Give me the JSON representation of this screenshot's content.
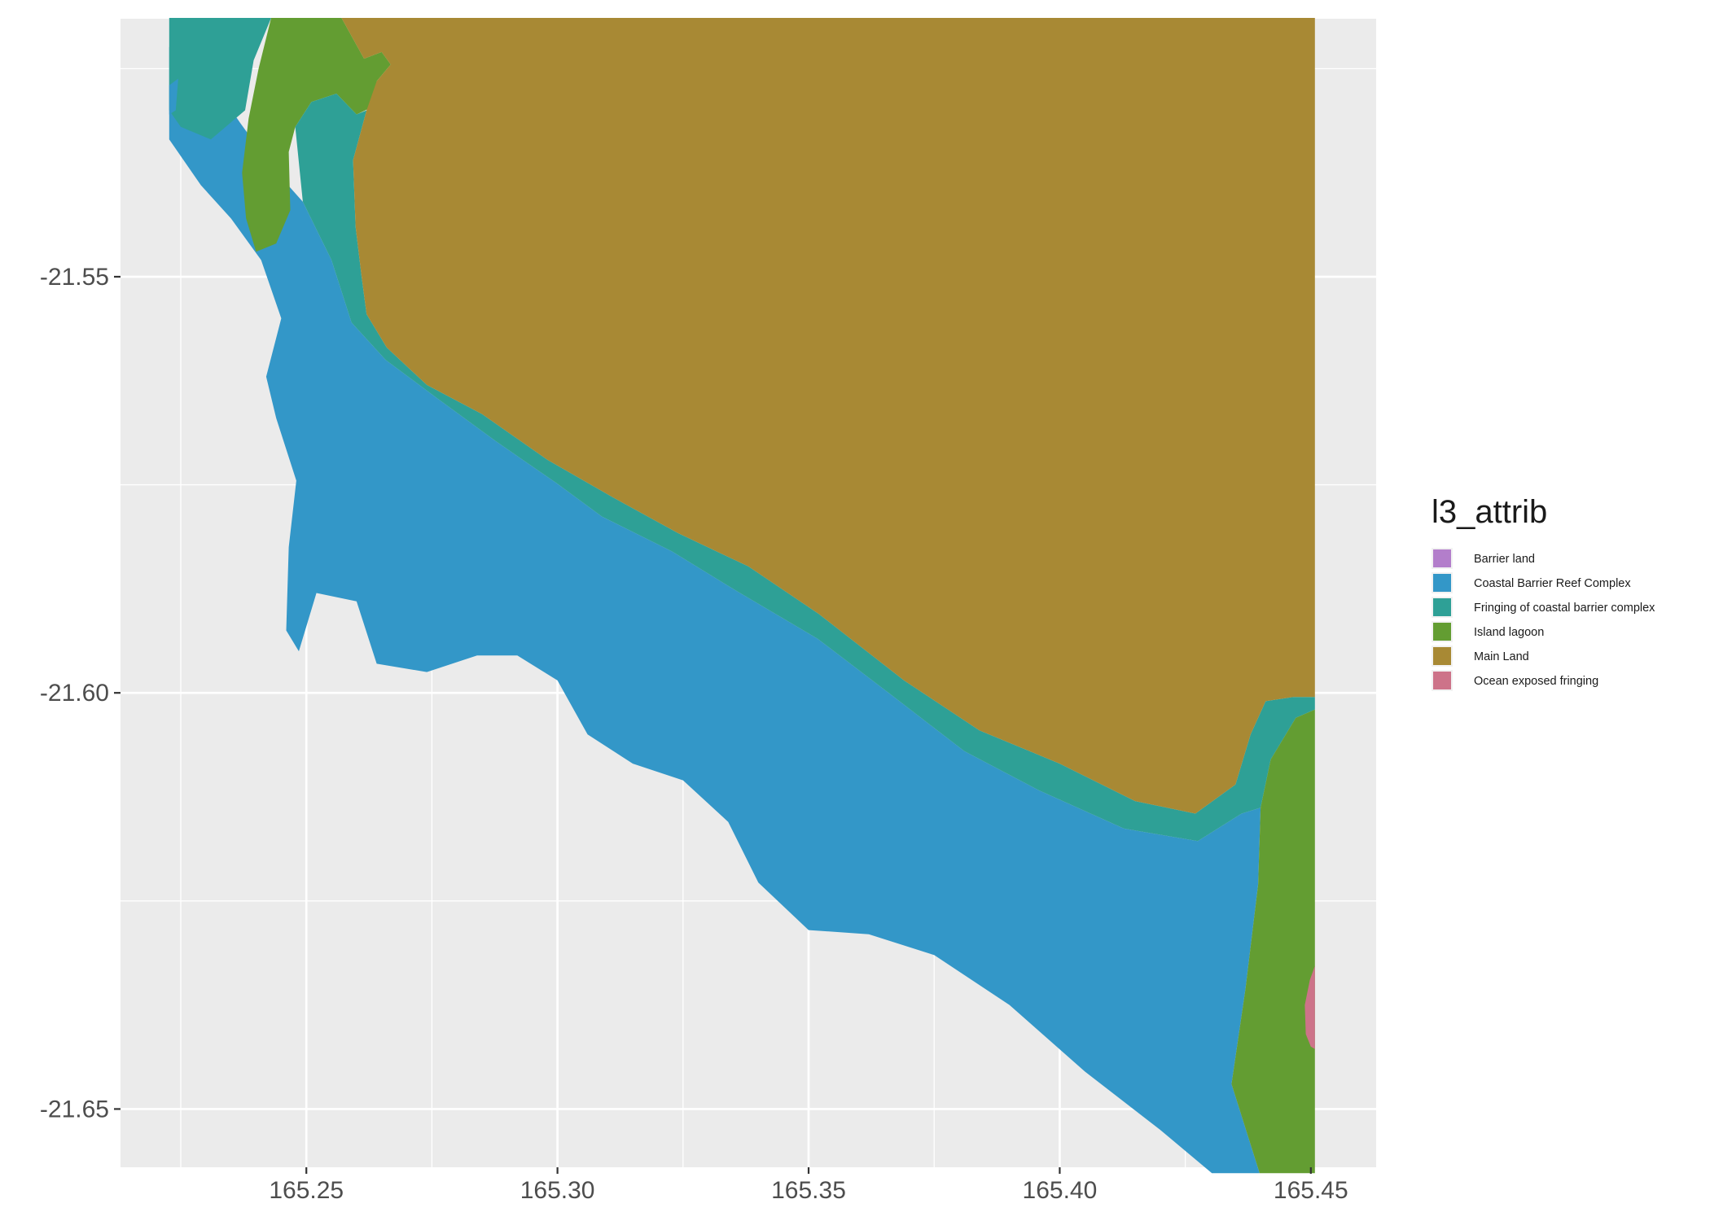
{
  "chart_data": {
    "type": "map",
    "xlim": [
      165.213,
      165.463
    ],
    "ylim": [
      -21.657,
      -21.519
    ],
    "x_ticks": [
      {
        "value": 165.25,
        "label": "165.25"
      },
      {
        "value": 165.3,
        "label": "165.30"
      },
      {
        "value": 165.35,
        "label": "165.35"
      },
      {
        "value": 165.4,
        "label": "165.40"
      },
      {
        "value": 165.45,
        "label": "165.45"
      }
    ],
    "y_ticks": [
      {
        "value": -21.55,
        "label": "-21.55"
      },
      {
        "value": -21.6,
        "label": "-21.60"
      },
      {
        "value": -21.65,
        "label": "-21.65"
      }
    ],
    "x_minor": [
      165.225,
      165.275,
      165.325,
      165.375,
      165.425
    ],
    "y_minor": [
      -21.525,
      -21.575,
      -21.625
    ],
    "grid": true,
    "legend": {
      "title": "l3_attrib",
      "position": "right",
      "entries": [
        {
          "label": "Barrier land",
          "color": "#B37ECB"
        },
        {
          "label": "Coastal Barrier Reef Complex",
          "color": "#3397C8"
        },
        {
          "label": "Fringing of coastal barrier complex",
          "color": "#2EA096"
        },
        {
          "label": "Island lagoon",
          "color": "#639D32"
        },
        {
          "label": "Main Land",
          "color": "#A88934"
        },
        {
          "label": "Ocean exposed fringing",
          "color": "#CD7389"
        }
      ]
    },
    "regions": [
      {
        "category": "Coastal Barrier Reef Complex",
        "coords": [
          [
            165.2227,
            -21.5224
          ],
          [
            165.2265,
            -21.5224
          ],
          [
            165.2368,
            -21.5315
          ],
          [
            165.2434,
            -21.537
          ],
          [
            165.2493,
            -21.541
          ],
          [
            165.255,
            -21.548
          ],
          [
            165.259,
            -21.5555
          ],
          [
            165.2658,
            -21.56
          ],
          [
            165.2758,
            -21.5645
          ],
          [
            165.2878,
            -21.5698
          ],
          [
            165.2998,
            -21.5748
          ],
          [
            165.3088,
            -21.5788
          ],
          [
            165.3228,
            -21.583
          ],
          [
            165.3358,
            -21.5878
          ],
          [
            165.3518,
            -21.5935
          ],
          [
            165.367,
            -21.6005
          ],
          [
            165.381,
            -21.607
          ],
          [
            165.3958,
            -21.6117
          ],
          [
            165.4128,
            -21.6163
          ],
          [
            165.4275,
            -21.6178
          ],
          [
            165.4362,
            -21.6145
          ],
          [
            165.44,
            -21.6138
          ],
          [
            165.4395,
            -21.623
          ],
          [
            165.437,
            -21.6355
          ],
          [
            165.4342,
            -21.647
          ],
          [
            165.4398,
            -21.6577
          ],
          [
            165.4303,
            -21.6577
          ],
          [
            165.42,
            -21.6525
          ],
          [
            165.405,
            -21.6455
          ],
          [
            165.39,
            -21.6375
          ],
          [
            165.375,
            -21.6315
          ],
          [
            165.362,
            -21.629
          ],
          [
            165.35,
            -21.6285
          ],
          [
            165.34,
            -21.6228
          ],
          [
            165.334,
            -21.6155
          ],
          [
            165.325,
            -21.6105
          ],
          [
            165.315,
            -21.6085
          ],
          [
            165.306,
            -21.605
          ],
          [
            165.3,
            -21.5985
          ],
          [
            165.292,
            -21.5955
          ],
          [
            165.284,
            -21.5955
          ],
          [
            165.274,
            -21.5975
          ],
          [
            165.264,
            -21.5965
          ],
          [
            165.26,
            -21.589
          ],
          [
            165.252,
            -21.588
          ],
          [
            165.2485,
            -21.595
          ],
          [
            165.246,
            -21.5925
          ],
          [
            165.2465,
            -21.5825
          ],
          [
            165.248,
            -21.5745
          ],
          [
            165.244,
            -21.567
          ],
          [
            165.242,
            -21.562
          ],
          [
            165.245,
            -21.555
          ],
          [
            165.241,
            -21.548
          ],
          [
            165.235,
            -21.543
          ],
          [
            165.229,
            -21.539
          ],
          [
            165.2227,
            -21.5335
          ]
        ]
      },
      {
        "category": "Fringing of coastal barrier complex",
        "coords": [
          [
            165.2227,
            -21.5189
          ],
          [
            165.243,
            -21.5189
          ],
          [
            165.2395,
            -21.524
          ],
          [
            165.2378,
            -21.53
          ],
          [
            165.231,
            -21.5335
          ],
          [
            165.225,
            -21.532
          ],
          [
            165.2227,
            -21.53
          ]
        ]
      },
      {
        "category": "Coastal Barrier Reef Complex",
        "coords": [
          [
            165.2227,
            -21.527
          ],
          [
            165.2245,
            -21.5262
          ],
          [
            165.224,
            -21.53
          ],
          [
            165.2227,
            -21.5305
          ]
        ]
      },
      {
        "category": "Island lagoon",
        "coords": [
          [
            165.243,
            -21.5189
          ],
          [
            165.257,
            -21.5189
          ],
          [
            165.2615,
            -21.5238
          ],
          [
            165.265,
            -21.523
          ],
          [
            165.2668,
            -21.5245
          ],
          [
            165.264,
            -21.5265
          ],
          [
            165.2635,
            -21.5295
          ],
          [
            165.26,
            -21.5305
          ],
          [
            165.256,
            -21.528
          ],
          [
            165.251,
            -21.529
          ],
          [
            165.2478,
            -21.532
          ],
          [
            165.2465,
            -21.535
          ],
          [
            165.2468,
            -21.542
          ],
          [
            165.244,
            -21.546
          ],
          [
            165.24,
            -21.547
          ],
          [
            165.238,
            -21.543
          ],
          [
            165.2372,
            -21.5375
          ],
          [
            165.2385,
            -21.531
          ],
          [
            165.2405,
            -21.525
          ]
        ]
      },
      {
        "category": "Fringing of coastal barrier complex",
        "coords": [
          [
            165.2478,
            -21.532
          ],
          [
            165.251,
            -21.529
          ],
          [
            165.256,
            -21.528
          ],
          [
            165.26,
            -21.5305
          ],
          [
            165.262,
            -21.53
          ],
          [
            165.2593,
            -21.536
          ],
          [
            165.2598,
            -21.544
          ],
          [
            165.261,
            -21.55
          ],
          [
            165.262,
            -21.5545
          ],
          [
            165.266,
            -21.5585
          ],
          [
            165.274,
            -21.563
          ],
          [
            165.285,
            -21.5665
          ],
          [
            165.298,
            -21.572
          ],
          [
            165.311,
            -21.5765
          ],
          [
            165.324,
            -21.5808
          ],
          [
            165.338,
            -21.5848
          ],
          [
            165.352,
            -21.5905
          ],
          [
            165.369,
            -21.5985
          ],
          [
            165.384,
            -21.6045
          ],
          [
            165.4,
            -21.6085
          ],
          [
            165.415,
            -21.613
          ],
          [
            165.427,
            -21.6145
          ],
          [
            165.435,
            -21.611
          ],
          [
            165.438,
            -21.605
          ],
          [
            165.441,
            -21.601
          ],
          [
            165.4465,
            -21.6005
          ],
          [
            165.4508,
            -21.6005
          ],
          [
            165.4508,
            -21.602
          ],
          [
            165.447,
            -21.603
          ],
          [
            165.442,
            -21.608
          ],
          [
            165.44,
            -21.6138
          ],
          [
            165.4362,
            -21.6145
          ],
          [
            165.4275,
            -21.6178
          ],
          [
            165.4128,
            -21.6163
          ],
          [
            165.3958,
            -21.6117
          ],
          [
            165.381,
            -21.607
          ],
          [
            165.367,
            -21.6005
          ],
          [
            165.3518,
            -21.5935
          ],
          [
            165.3358,
            -21.5878
          ],
          [
            165.3228,
            -21.583
          ],
          [
            165.3088,
            -21.5788
          ],
          [
            165.2998,
            -21.5748
          ],
          [
            165.2878,
            -21.5698
          ],
          [
            165.2758,
            -21.5645
          ],
          [
            165.2658,
            -21.56
          ],
          [
            165.259,
            -21.5555
          ],
          [
            165.255,
            -21.548
          ],
          [
            165.2493,
            -21.541
          ]
        ]
      },
      {
        "category": "Main Land",
        "coords": [
          [
            165.257,
            -21.5189
          ],
          [
            165.4508,
            -21.5189
          ],
          [
            165.4508,
            -21.6005
          ],
          [
            165.4465,
            -21.6005
          ],
          [
            165.441,
            -21.601
          ],
          [
            165.438,
            -21.605
          ],
          [
            165.435,
            -21.611
          ],
          [
            165.427,
            -21.6145
          ],
          [
            165.415,
            -21.613
          ],
          [
            165.4,
            -21.6085
          ],
          [
            165.384,
            -21.6045
          ],
          [
            165.369,
            -21.5985
          ],
          [
            165.352,
            -21.5905
          ],
          [
            165.338,
            -21.5848
          ],
          [
            165.324,
            -21.5808
          ],
          [
            165.311,
            -21.5765
          ],
          [
            165.298,
            -21.572
          ],
          [
            165.285,
            -21.5665
          ],
          [
            165.274,
            -21.563
          ],
          [
            165.266,
            -21.5585
          ],
          [
            165.262,
            -21.5545
          ],
          [
            165.261,
            -21.55
          ],
          [
            165.2598,
            -21.544
          ],
          [
            165.2593,
            -21.536
          ],
          [
            165.262,
            -21.53
          ],
          [
            165.264,
            -21.5265
          ],
          [
            165.2668,
            -21.5245
          ],
          [
            165.265,
            -21.523
          ],
          [
            165.2615,
            -21.5238
          ]
        ]
      },
      {
        "category": "Island lagoon",
        "coords": [
          [
            165.44,
            -21.6138
          ],
          [
            165.442,
            -21.608
          ],
          [
            165.447,
            -21.603
          ],
          [
            165.4508,
            -21.602
          ],
          [
            165.4508,
            -21.6577
          ],
          [
            165.4398,
            -21.6577
          ],
          [
            165.4342,
            -21.647
          ],
          [
            165.437,
            -21.6355
          ],
          [
            165.4395,
            -21.623
          ]
        ]
      },
      {
        "category": "Ocean exposed fringing",
        "coords": [
          [
            165.4508,
            -21.6328
          ],
          [
            165.4498,
            -21.6345
          ],
          [
            165.4488,
            -21.6375
          ],
          [
            165.449,
            -21.641
          ],
          [
            165.45,
            -21.6425
          ],
          [
            165.4508,
            -21.6428
          ]
        ]
      }
    ]
  }
}
